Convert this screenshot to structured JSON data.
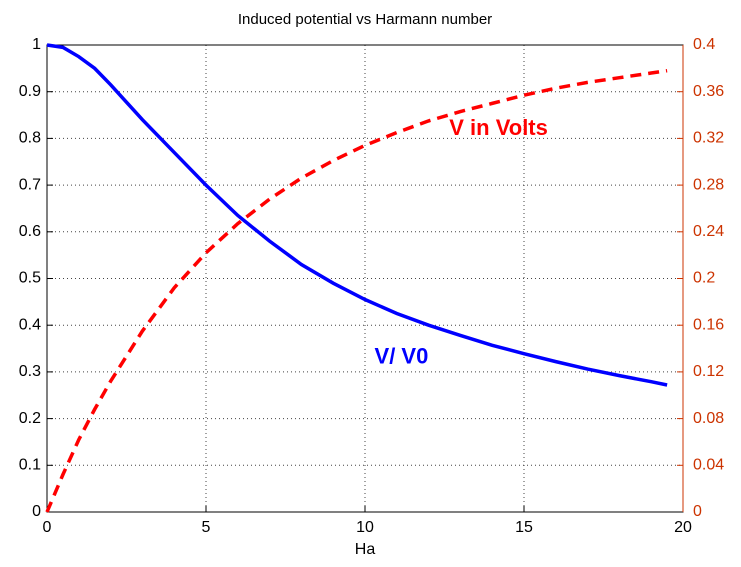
{
  "chart_data": {
    "type": "line",
    "title": "Induced potential vs Harmann number",
    "x_label": "Ha",
    "x": [
      0,
      0.5,
      1,
      1.5,
      2,
      3,
      4,
      5,
      6,
      7,
      8,
      9,
      10,
      11,
      12,
      13,
      14,
      15,
      16,
      17,
      18,
      19,
      19.5
    ],
    "series": [
      {
        "name": "V/ V0",
        "color": "#0000ff",
        "dash": "solid",
        "axis": "y",
        "values": [
          1,
          0.995,
          0.975,
          0.95,
          0.915,
          0.84,
          0.77,
          0.7,
          0.635,
          0.58,
          0.53,
          0.49,
          0.455,
          0.425,
          0.4,
          0.378,
          0.357,
          0.339,
          0.322,
          0.306,
          0.292,
          0.279,
          0.272
        ]
      },
      {
        "name": "V in Volts",
        "color": "#ff0000",
        "dash": "dashed",
        "axis": "y2",
        "values": [
          0,
          0.032,
          0.062,
          0.088,
          0.112,
          0.155,
          0.192,
          0.222,
          0.247,
          0.268,
          0.286,
          0.301,
          0.314,
          0.325,
          0.335,
          0.343,
          0.35,
          0.357,
          0.363,
          0.368,
          0.372,
          0.376,
          0.378
        ]
      }
    ],
    "annotations": [
      {
        "text": "V in Volts",
        "x": 12.65,
        "y": 0.82,
        "color": "#ff0000"
      },
      {
        "text": "V/ V0",
        "x": 10.3,
        "y": 0.33,
        "color": "#0000ff"
      }
    ],
    "xlim": [
      0,
      20
    ],
    "xticks": [
      0,
      5,
      10,
      15,
      20
    ],
    "ylim": [
      0,
      1
    ],
    "yticks": [
      0,
      0.1,
      0.2,
      0.3,
      0.4,
      0.5,
      0.6,
      0.7,
      0.8,
      0.9,
      1
    ],
    "y2lim": [
      0,
      0.4
    ],
    "y2ticks": [
      0,
      0.04,
      0.08,
      0.12,
      0.16,
      0.2,
      0.24,
      0.28,
      0.32,
      0.36,
      0.4
    ],
    "y2color": "#cc3300",
    "grid": true
  }
}
